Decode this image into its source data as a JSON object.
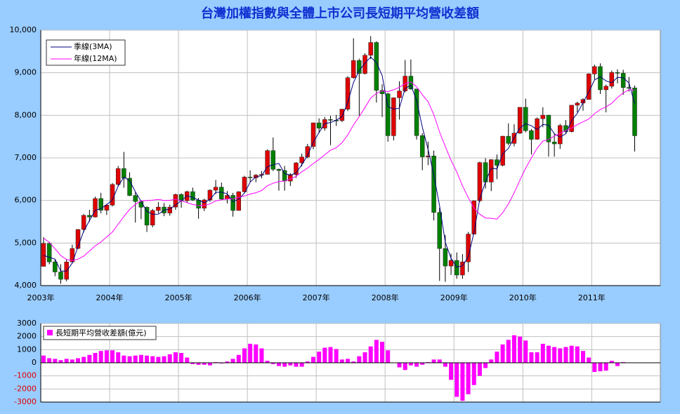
{
  "chart_data": [
    {
      "type": "candlestick",
      "title": "台灣加權指數與全體上市公司長短期平均營收差額",
      "categories": [
        "2003年",
        null,
        null,
        null,
        null,
        null,
        null,
        null,
        null,
        null,
        null,
        null,
        "2004年",
        null,
        null,
        null,
        null,
        null,
        null,
        null,
        null,
        null,
        null,
        null,
        "2005年",
        null,
        null,
        null,
        null,
        null,
        null,
        null,
        null,
        null,
        null,
        null,
        "2006年",
        null,
        null,
        null,
        null,
        null,
        null,
        null,
        null,
        null,
        null,
        null,
        "2007年",
        null,
        null,
        null,
        null,
        null,
        null,
        null,
        null,
        null,
        null,
        null,
        "2008年",
        null,
        null,
        null,
        null,
        null,
        null,
        null,
        null,
        null,
        null,
        null,
        "2009年",
        null,
        null,
        null,
        null,
        null,
        null,
        null,
        null,
        null,
        null,
        null,
        "2010年",
        null,
        null,
        null,
        null,
        null,
        null,
        null,
        null,
        null,
        null,
        null,
        "2011年",
        null,
        null,
        null,
        null,
        null,
        null,
        null
      ],
      "open": [
        4452,
        4990,
        4556,
        4321,
        4148,
        4555,
        4872,
        5318,
        5650,
        5611,
        6045,
        5771,
        5890,
        6375,
        6750,
        6522,
        6117,
        5977,
        5840,
        5420,
        5765,
        5845,
        5705,
        5844,
        6140,
        5994,
        6207,
        6006,
        5818,
        6012,
        6242,
        6312,
        6033,
        6119,
        5764,
        6203,
        6548,
        6532,
        6595,
        6613,
        7171,
        6732,
        6704,
        6455,
        6610,
        6883,
        7021,
        7267,
        7823,
        7699,
        7901,
        7884,
        7875,
        8145,
        8883,
        9288,
        8982,
        9411,
        9711,
        8586,
        8506,
        7521,
        8412,
        8572,
        8920,
        8619,
        7523,
        7024,
        7046,
        5719,
        4871,
        4460,
        4591,
        4248,
        4557,
        5210,
        5993,
        6890,
        6432,
        6958,
        6826,
        7509,
        7340,
        7582,
        8188,
        7640,
        7436,
        7920,
        8004,
        7374,
        7329,
        7760,
        7616,
        8238,
        8287,
        8372,
        8973,
        9145,
        8600,
        8683,
        9008,
        8988,
        8653,
        8644
      ],
      "high": [
        5140,
        5030,
        4620,
        4500,
        4610,
        4960,
        5330,
        5680,
        5780,
        6090,
        6180,
        5920,
        6410,
        6810,
        7140,
        6660,
        6190,
        6000,
        5860,
        5800,
        5960,
        5940,
        5900,
        6160,
        6170,
        6230,
        6300,
        6060,
        6040,
        6260,
        6480,
        6420,
        6220,
        6180,
        6220,
        6580,
        6710,
        6620,
        6690,
        7200,
        7480,
        6750,
        6810,
        6640,
        6900,
        7100,
        7330,
        7830,
        7930,
        7960,
        7990,
        8010,
        8150,
        8920,
        9810,
        9330,
        9460,
        9860,
        9740,
        8730,
        8530,
        8420,
        8800,
        9300,
        9310,
        8620,
        7580,
        7380,
        7170,
        5830,
        5190,
        4750,
        4780,
        4740,
        5260,
        6000,
        6910,
        6990,
        6970,
        7080,
        7520,
        7810,
        7790,
        8190,
        8390,
        7680,
        7950,
        8190,
        8010,
        7580,
        7800,
        7890,
        8240,
        8320,
        8400,
        8990,
        9190,
        9220,
        8720,
        9050,
        9080,
        9070,
        8900,
        8700
      ],
      "low": [
        4450,
        4500,
        4220,
        4044,
        4100,
        4520,
        4860,
        5250,
        5500,
        5600,
        5700,
        5660,
        5860,
        6340,
        6300,
        6100,
        5480,
        5560,
        5260,
        5370,
        5700,
        5630,
        5640,
        5780,
        5830,
        5950,
        5990,
        5570,
        5750,
        5970,
        6150,
        6010,
        5930,
        5620,
        5760,
        6190,
        6440,
        6430,
        6520,
        6610,
        6690,
        6230,
        6230,
        6340,
        6530,
        6800,
        6990,
        7200,
        7580,
        7640,
        7300,
        7750,
        7840,
        8100,
        8860,
        7990,
        8960,
        9320,
        8300,
        7960,
        7380,
        7410,
        7900,
        8540,
        8600,
        7430,
        6710,
        6830,
        5530,
        4110,
        4089,
        4250,
        4160,
        4160,
        4320,
        5200,
        5960,
        6280,
        6220,
        6500,
        6800,
        7300,
        7270,
        7560,
        7600,
        7080,
        7430,
        7720,
        7030,
        7030,
        7210,
        7580,
        7600,
        8070,
        8110,
        8370,
        8840,
        8500,
        8070,
        8630,
        8750,
        8480,
        8560,
        7150
      ],
      "close": [
        4990,
        4556,
        4321,
        4148,
        4555,
        4872,
        5318,
        5650,
        5611,
        6045,
        5771,
        5890,
        6375,
        6750,
        6522,
        6117,
        5977,
        5840,
        5420,
        5765,
        5845,
        5705,
        5844,
        6140,
        5994,
        6207,
        6006,
        5818,
        6012,
        6242,
        6312,
        6033,
        6119,
        5764,
        6203,
        6548,
        6532,
        6595,
        6613,
        7171,
        6732,
        6704,
        6455,
        6610,
        6883,
        7021,
        7267,
        7823,
        7699,
        7901,
        7884,
        7875,
        8145,
        8883,
        9288,
        8982,
        9411,
        9711,
        8586,
        8506,
        7521,
        8412,
        8572,
        8920,
        8619,
        7523,
        7024,
        7046,
        5719,
        4871,
        4460,
        4591,
        4248,
        4557,
        5210,
        5993,
        6890,
        6432,
        6958,
        6826,
        7509,
        7340,
        7582,
        8188,
        7640,
        7436,
        7920,
        8004,
        7374,
        7329,
        7760,
        7616,
        8238,
        8287,
        8372,
        8973,
        9145,
        8600,
        8683,
        9008,
        8988,
        8653,
        8644,
        7520
      ],
      "up_color": "#e00000",
      "down_color": "#008000",
      "series": [
        {
          "name": "季線(3MA)",
          "color": "#000080",
          "values": [
            4708,
            4666,
            4622,
            4342,
            4341,
            4525,
            4915,
            5280,
            5526,
            5769,
            5809,
            5902,
            6012,
            6338,
            6549,
            6463,
            6205,
            5978,
            5746,
            5675,
            5677,
            5772,
            5798,
            5896,
            5993,
            6114,
            6069,
            6010,
            5945,
            6024,
            6189,
            6196,
            6155,
            5972,
            6029,
            6172,
            6428,
            6558,
            6580,
            6793,
            6839,
            6869,
            6630,
            6590,
            6649,
            6838,
            7057,
            7370,
            7596,
            7808,
            7828,
            7887,
            7968,
            8301,
            8772,
            9051,
            9227,
            9368,
            9236,
            8934,
            8204,
            8146,
            8168,
            8635,
            8704,
            8354,
            7722,
            7198,
            6596,
            5879,
            5017,
            4641,
            4433,
            4465,
            4672,
            5253,
            6031,
            6438,
            6760,
            6739,
            7098,
            7225,
            7477,
            7703,
            7803,
            7755,
            7665,
            7787,
            7766,
            7569,
            7488,
            7568,
            7871,
            8047,
            8299,
            8544,
            8830,
            8906,
            8809,
            8764,
            8893,
            8883,
            8762,
            8272
          ]
        },
        {
          "name": "年線(12MA)",
          "color": "#ff00ff",
          "values": [
            5111,
            5018,
            4864,
            4705,
            4611,
            4588,
            4619,
            4693,
            4811,
            4933,
            5024,
            5144,
            5259,
            5442,
            5626,
            5790,
            5908,
            5989,
            5997,
            6007,
            6026,
            5998,
            6004,
            6025,
            5993,
            5948,
            5905,
            5880,
            5883,
            5917,
            5991,
            6013,
            6036,
            6041,
            6071,
            6105,
            6150,
            6182,
            6233,
            6345,
            6405,
            6444,
            6456,
            6504,
            6568,
            6672,
            6761,
            6867,
            6964,
            7073,
            7179,
            7238,
            7356,
            7537,
            7773,
            7971,
            8182,
            8406,
            8516,
            8573,
            8558,
            8600,
            8658,
            8745,
            8784,
            8671,
            8482,
            8321,
            8013,
            7610,
            7266,
            6940,
            6667,
            6346,
            6066,
            5822,
            5678,
            5587,
            5581,
            5563,
            5712,
            5918,
            6178,
            6478,
            6760,
            7000,
            7226,
            7394,
            7434,
            7509,
            7576,
            7642,
            7702,
            7781,
            7847,
            7912,
            8038,
            8135,
            8198,
            8282,
            8417,
            8527,
            8601,
            8593
          ]
        }
      ],
      "ylim": [
        4000,
        10000
      ],
      "yticks": [
        {
          "value": 4000,
          "label": "4,000"
        },
        {
          "value": 5000,
          "label": "5,000"
        },
        {
          "value": 6000,
          "label": "6,000"
        },
        {
          "value": 7000,
          "label": "7,000"
        },
        {
          "value": 8000,
          "label": "8,000"
        },
        {
          "value": 9000,
          "label": "9,000"
        },
        {
          "value": 10000,
          "label": "10,000"
        }
      ],
      "grid": true,
      "legend": "upper-left"
    },
    {
      "type": "bar",
      "series": [
        {
          "name": "長短期平均營收差額(億元)",
          "color": "#ff00ff",
          "values": [
            550,
            350,
            300,
            200,
            300,
            250,
            350,
            450,
            600,
            750,
            900,
            950,
            950,
            800,
            550,
            500,
            550,
            600,
            550,
            500,
            450,
            500,
            650,
            800,
            750,
            400,
            -100,
            -150,
            -150,
            -200,
            50,
            -50,
            100,
            300,
            600,
            1100,
            1450,
            1400,
            1100,
            150,
            -100,
            -250,
            -300,
            -200,
            -300,
            -300,
            100,
            450,
            850,
            1150,
            1200,
            1050,
            250,
            300,
            100,
            500,
            800,
            1250,
            1750,
            1600,
            950,
            0,
            -350,
            -550,
            -200,
            -300,
            -150,
            50,
            250,
            250,
            -300,
            -1300,
            -2600,
            -2900,
            -2400,
            -1700,
            -1000,
            -400,
            250,
            850,
            1400,
            1750,
            2100,
            2000,
            1700,
            800,
            800,
            1450,
            1300,
            1200,
            1100,
            1200,
            1300,
            1250,
            900,
            400,
            -700,
            -650,
            -600,
            150,
            -250,
            50,
            null,
            null
          ]
        }
      ],
      "ylim": [
        -3000,
        3000
      ],
      "yticks": [
        -3000,
        -2000,
        -1000,
        0,
        1000,
        2000,
        3000
      ],
      "grid": true,
      "legend": "upper-left",
      "negative_tick_color": "#e00000"
    }
  ]
}
